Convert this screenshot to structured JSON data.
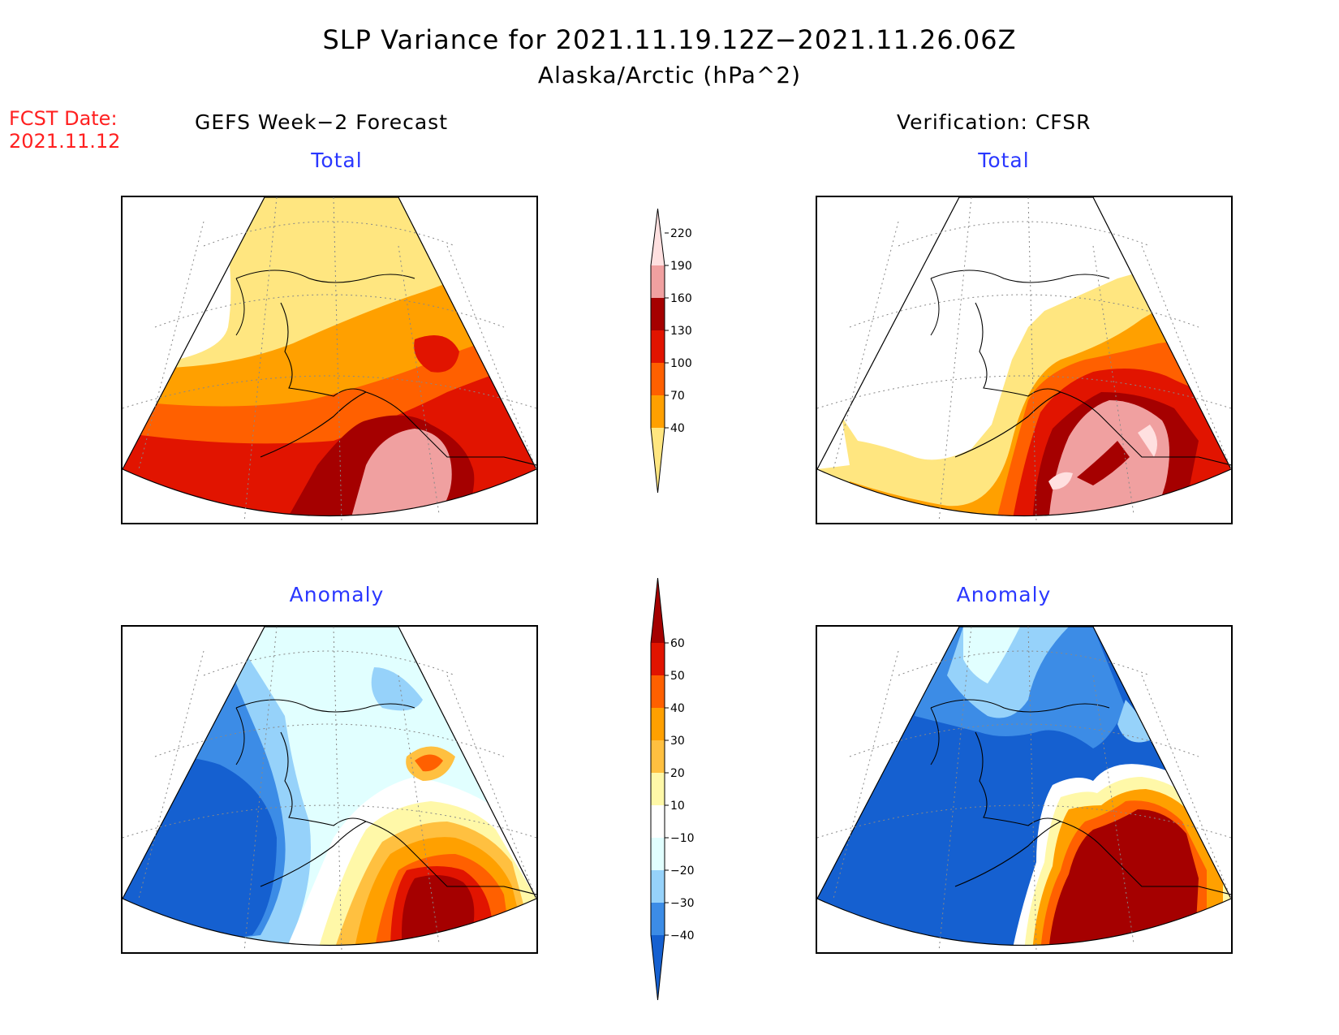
{
  "title": "SLP Variance for 2021.11.19.12Z−2021.11.26.06Z",
  "subtitle": "Alaska/Arctic (hPa^2)",
  "forecast_date": {
    "label": "FCST Date:",
    "value": "2021.11.12"
  },
  "columns": {
    "left": "GEFS Week−2 Forecast",
    "right": "Verification: CFSR"
  },
  "panels": {
    "total_label": "Total",
    "anomaly_label": "Anomaly"
  },
  "colorbars": {
    "total": {
      "ticks": [
        "40",
        "70",
        "100",
        "130",
        "160",
        "190",
        "220"
      ],
      "colors": [
        "#ffe680",
        "#ffa000",
        "#ff6000",
        "#e11400",
        "#a50000",
        "#f0a0a0",
        "#ffe0e0"
      ]
    },
    "anomaly": {
      "ticks": [
        "−40",
        "−30",
        "−20",
        "−10",
        "10",
        "20",
        "30",
        "40",
        "50",
        "60"
      ],
      "colors": [
        "#1560d0",
        "#3c8ce6",
        "#96d2fa",
        "#e1ffff",
        "#ffffff",
        "#fff8a8",
        "#ffc040",
        "#ffa000",
        "#ff6000",
        "#e11400",
        "#a50000"
      ]
    }
  }
}
